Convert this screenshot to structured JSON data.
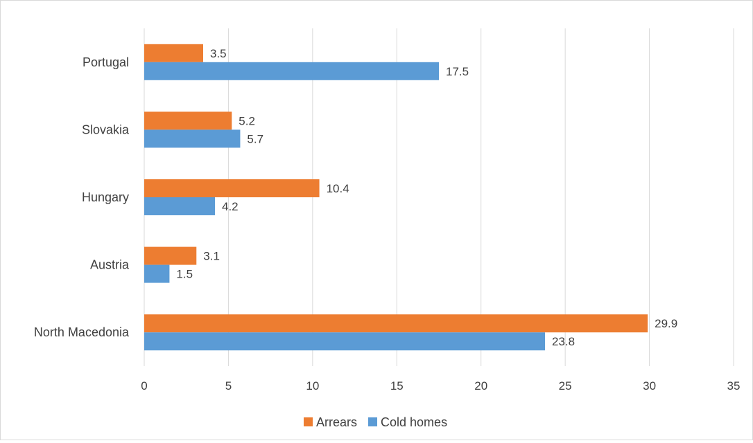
{
  "chart_data": {
    "type": "bar",
    "orientation": "horizontal",
    "categories": [
      "Portugal",
      "Slovakia",
      "Hungary",
      "Austria",
      "North Macedonia"
    ],
    "series": [
      {
        "name": "Arrears",
        "color": "#ED7D31",
        "values": [
          3.5,
          5.2,
          10.4,
          3.1,
          29.9
        ]
      },
      {
        "name": "Cold homes",
        "color": "#5B9BD5",
        "values": [
          17.5,
          5.7,
          4.2,
          1.5,
          23.8
        ]
      }
    ],
    "x_ticks": [
      "0",
      "5",
      "10",
      "15",
      "20",
      "25",
      "30",
      "35"
    ],
    "xlim": [
      0,
      35
    ],
    "grid": true,
    "legend_position": "bottom",
    "data_labels": true
  }
}
